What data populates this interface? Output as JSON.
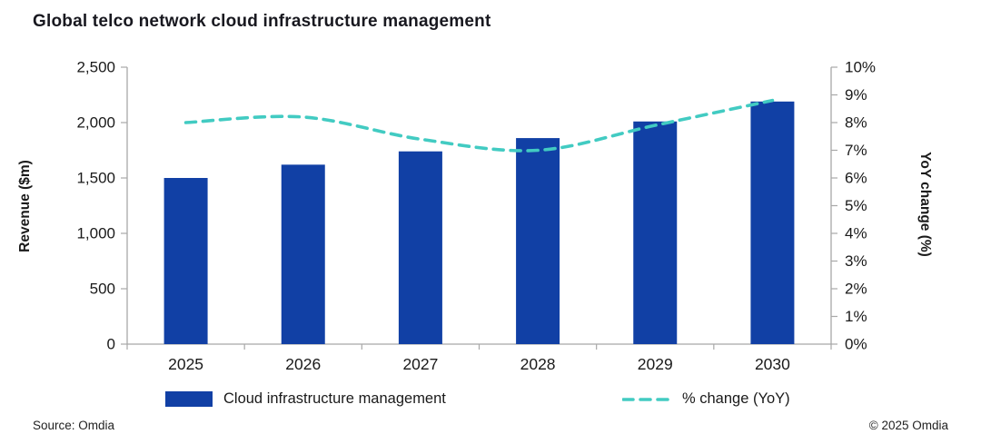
{
  "title": "Global telco network cloud infrastructure management",
  "source": "Source: Omdia",
  "copyright": "© 2025 Omdia",
  "colors": {
    "bar": "#1140a5",
    "line": "#42cbc2",
    "axis": "#a8a8a8",
    "text": "#1a1a1a"
  },
  "legend": {
    "bar_label": "Cloud infrastructure management",
    "line_label": "% change (YoY)"
  },
  "chart_data": {
    "type": "bar",
    "subtype": "bar+line combo, dual axis",
    "categories": [
      "2025",
      "2026",
      "2027",
      "2028",
      "2029",
      "2030"
    ],
    "series": [
      {
        "name": "Cloud infrastructure management",
        "type": "bar",
        "axis": "left",
        "values": [
          1500,
          1620,
          1740,
          1860,
          2010,
          2190
        ]
      },
      {
        "name": "% change (YoY)",
        "type": "line",
        "style": "dashed-smooth",
        "axis": "right",
        "values": [
          8.0,
          8.2,
          7.4,
          7.0,
          7.9,
          8.8
        ]
      }
    ],
    "left_axis": {
      "label": "Revenue ($m)",
      "min": 0,
      "max": 2500,
      "step": 500
    },
    "right_axis": {
      "label": "YoY change (%)",
      "min": 0,
      "max": 10,
      "step": 1,
      "suffix": "%"
    },
    "grid": false,
    "legend_position": "bottom"
  }
}
